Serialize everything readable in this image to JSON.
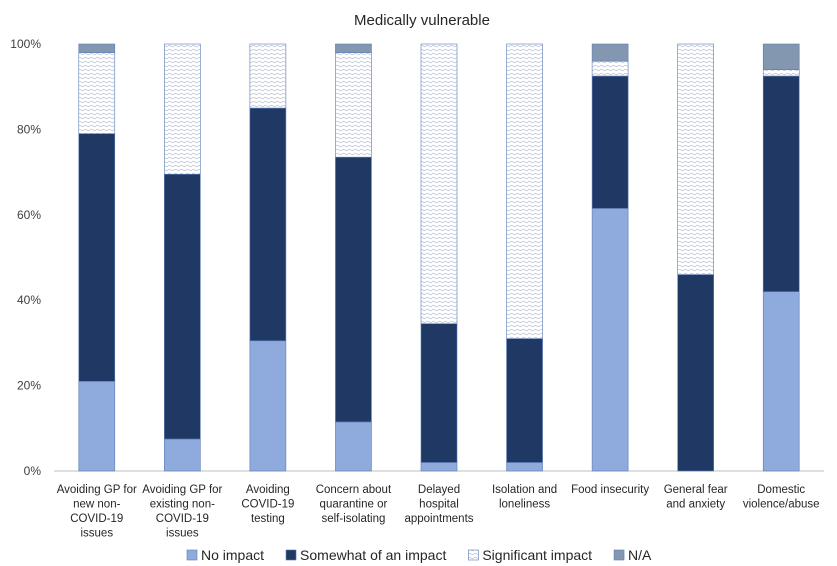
{
  "chart_data": {
    "type": "bar",
    "stacked": true,
    "title": "Medically vulnerable",
    "xlabel": "",
    "ylabel": "",
    "ylim": [
      0,
      100
    ],
    "yticks": [
      "0%",
      "20%",
      "40%",
      "60%",
      "80%",
      "100%"
    ],
    "categories": [
      [
        "Avoiding GP for",
        "new non-",
        "COVID-19",
        "issues"
      ],
      [
        "Avoiding GP for",
        "existing non-",
        "COVID-19",
        "issues"
      ],
      [
        "Avoiding",
        "COVID-19",
        "testing"
      ],
      [
        "Concern about",
        "quarantine or",
        "self-isolating"
      ],
      [
        "Delayed",
        "hospital",
        "appointments"
      ],
      [
        "Isolation and",
        "loneliness"
      ],
      [
        "Food insecurity"
      ],
      [
        "General fear",
        "and anxiety"
      ],
      [
        "Domestic",
        "violence/abuse"
      ]
    ],
    "series": [
      {
        "name": "No impact",
        "color": "#8faadc",
        "pattern": "solid",
        "values": [
          21,
          7.5,
          30.5,
          11.5,
          2,
          2,
          61.5,
          0,
          42
        ]
      },
      {
        "name": "Somewhat of an impact",
        "color": "#203864",
        "pattern": "solid",
        "values": [
          58,
          62,
          54.5,
          62,
          32.5,
          29,
          31,
          46,
          50.5
        ]
      },
      {
        "name": "Significant impact",
        "color": "#dae3f3",
        "pattern": "wave",
        "values": [
          19,
          30.5,
          15,
          24.5,
          65.5,
          69,
          3.5,
          54,
          1.5
        ]
      },
      {
        "name": "N/A",
        "color": "#8497b0",
        "pattern": "solid",
        "values": [
          2,
          0,
          0,
          2,
          0,
          0,
          4,
          0,
          6
        ]
      }
    ],
    "legend_position": "bottom",
    "grid": false
  }
}
